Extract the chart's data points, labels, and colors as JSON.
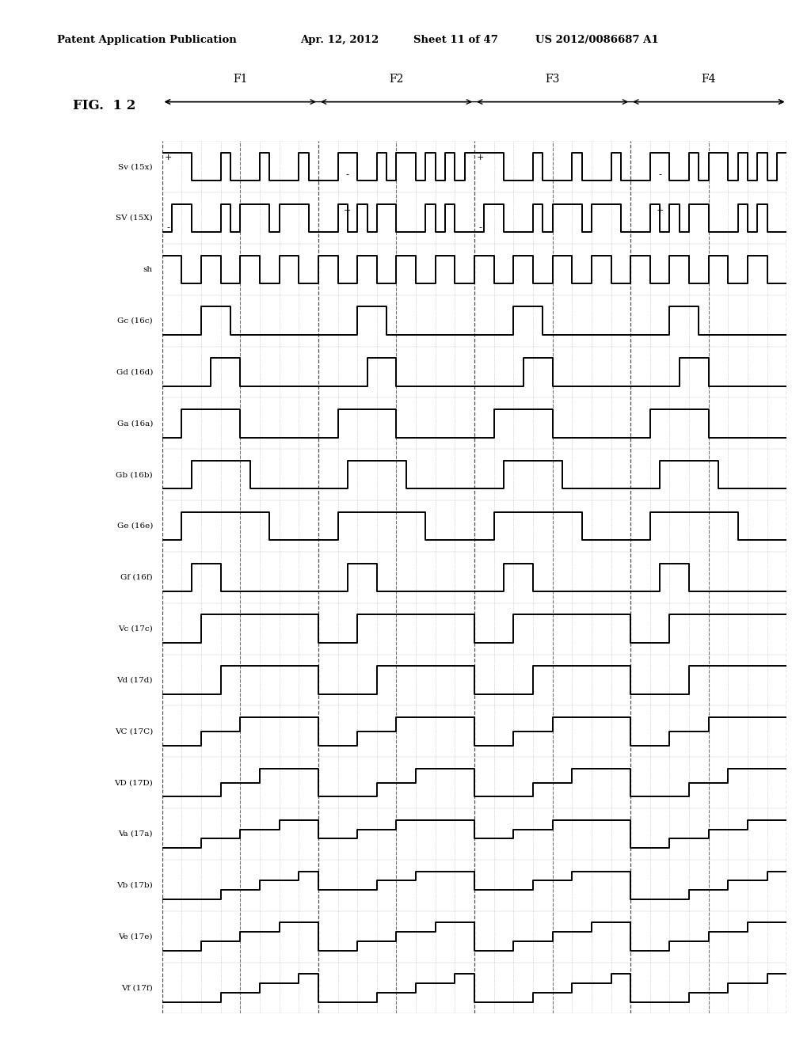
{
  "title": "FIG.  1 2",
  "background_color": "#ffffff",
  "signal_labels": [
    "Sv (15x)",
    "SV (15X)",
    "sh",
    "Gc (16c)",
    "Gd (16d)",
    "Ga (16a)",
    "Gb (16b)",
    "Ge (16e)",
    "Gf (16f)",
    "Vc (17c)",
    "Vd (17d)",
    "VC (17C)",
    "VD (17D)",
    "Va (17a)",
    "Vb (17b)",
    "Ve (17e)",
    "Vf (17f)"
  ],
  "frame_labels": [
    "F1",
    "F2",
    "F3",
    "F4"
  ],
  "line_color": "#000000"
}
